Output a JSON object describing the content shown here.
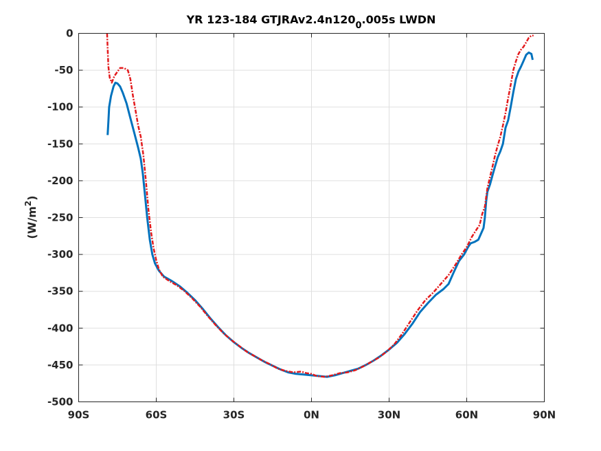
{
  "chart_data": {
    "type": "line",
    "title_prefix": "YR 123-184 GTJRAv2.4n120",
    "title_subscript": "0",
    "title_suffix": ".005s LWDN",
    "ylabel_prefix": "(W/m",
    "ylabel_superscript": "2",
    "ylabel_suffix": ")",
    "xlim": [
      -90,
      90
    ],
    "ylim": [
      -500,
      0
    ],
    "grid": true,
    "x_ticks": [
      {
        "value": -90,
        "label": "90S"
      },
      {
        "value": -60,
        "label": "60S"
      },
      {
        "value": -30,
        "label": "30S"
      },
      {
        "value": 0,
        "label": "0N"
      },
      {
        "value": 30,
        "label": "30N"
      },
      {
        "value": 60,
        "label": "60N"
      },
      {
        "value": 90,
        "label": "90N"
      }
    ],
    "y_ticks": [
      {
        "value": 0,
        "label": "0"
      },
      {
        "value": -50,
        "label": "-50"
      },
      {
        "value": -100,
        "label": "-100"
      },
      {
        "value": -150,
        "label": "-150"
      },
      {
        "value": -200,
        "label": "-200"
      },
      {
        "value": -250,
        "label": "-250"
      },
      {
        "value": -300,
        "label": "-300"
      },
      {
        "value": -350,
        "label": "-350"
      },
      {
        "value": -400,
        "label": "-400"
      },
      {
        "value": -450,
        "label": "-450"
      },
      {
        "value": -500,
        "label": "-500"
      }
    ],
    "series": [
      {
        "color": "#0072BD",
        "style": "solid",
        "points": [
          [
            -78.8,
            -138
          ],
          [
            -78.5,
            -120
          ],
          [
            -78.2,
            -100
          ],
          [
            -77.5,
            -85
          ],
          [
            -76.5,
            -72
          ],
          [
            -75.8,
            -67
          ],
          [
            -75.0,
            -68
          ],
          [
            -74.0,
            -72
          ],
          [
            -73.0,
            -80
          ],
          [
            -71.5,
            -95
          ],
          [
            -70.0,
            -115
          ],
          [
            -68.5,
            -135
          ],
          [
            -67.0,
            -155
          ],
          [
            -66.0,
            -170
          ],
          [
            -65.2,
            -190
          ],
          [
            -64.5,
            -215
          ],
          [
            -63.5,
            -250
          ],
          [
            -62.5,
            -280
          ],
          [
            -61.5,
            -300
          ],
          [
            -60.5,
            -312
          ],
          [
            -59.0,
            -322
          ],
          [
            -57.0,
            -330
          ],
          [
            -54.0,
            -336
          ],
          [
            -51.0,
            -343
          ],
          [
            -48.0,
            -352
          ],
          [
            -45.0,
            -362
          ],
          [
            -42.0,
            -374
          ],
          [
            -39.0,
            -387
          ],
          [
            -36.0,
            -399
          ],
          [
            -33.0,
            -410
          ],
          [
            -30.0,
            -419
          ],
          [
            -27.0,
            -427
          ],
          [
            -24.0,
            -434
          ],
          [
            -21.0,
            -440
          ],
          [
            -18.0,
            -446
          ],
          [
            -15.0,
            -451
          ],
          [
            -12.0,
            -456
          ],
          [
            -9.0,
            -460
          ],
          [
            -6.0,
            -462
          ],
          [
            -3.0,
            -463
          ],
          [
            0.0,
            -464
          ],
          [
            3.0,
            -465
          ],
          [
            6.0,
            -466
          ],
          [
            9.0,
            -464
          ],
          [
            12.0,
            -461
          ],
          [
            15.0,
            -458
          ],
          [
            18.0,
            -455
          ],
          [
            21.0,
            -450
          ],
          [
            24.0,
            -444
          ],
          [
            27.0,
            -437
          ],
          [
            30.0,
            -429
          ],
          [
            33.0,
            -420
          ],
          [
            36.0,
            -408
          ],
          [
            39.0,
            -394
          ],
          [
            42.0,
            -378
          ],
          [
            45.0,
            -366
          ],
          [
            48.0,
            -355
          ],
          [
            51.0,
            -347
          ],
          [
            53.0,
            -340
          ],
          [
            55.0,
            -324
          ],
          [
            57.0,
            -309
          ],
          [
            59.0,
            -300
          ],
          [
            60.5,
            -290
          ],
          [
            61.5,
            -285
          ],
          [
            63.0,
            -283
          ],
          [
            64.5,
            -280
          ],
          [
            65.5,
            -272
          ],
          [
            66.5,
            -264
          ],
          [
            67.0,
            -250
          ],
          [
            67.5,
            -228
          ],
          [
            68.0,
            -215
          ],
          [
            69.0,
            -205
          ],
          [
            70.0,
            -192
          ],
          [
            71.0,
            -180
          ],
          [
            72.0,
            -168
          ],
          [
            73.0,
            -160
          ],
          [
            74.0,
            -150
          ],
          [
            75.0,
            -128
          ],
          [
            76.0,
            -118
          ],
          [
            77.0,
            -100
          ],
          [
            78.0,
            -80
          ],
          [
            79.0,
            -62
          ],
          [
            80.0,
            -52
          ],
          [
            81.0,
            -45
          ],
          [
            82.0,
            -37
          ],
          [
            83.0,
            -29
          ],
          [
            84.0,
            -26
          ],
          [
            85.0,
            -28
          ],
          [
            85.5,
            -36
          ]
        ]
      },
      {
        "color": "#E31A1C",
        "style": "dashdot",
        "points": [
          [
            -79.0,
            0
          ],
          [
            -78.8,
            -20
          ],
          [
            -78.5,
            -45
          ],
          [
            -78.0,
            -60
          ],
          [
            -77.2,
            -67
          ],
          [
            -76.2,
            -58
          ],
          [
            -75.0,
            -52
          ],
          [
            -74.0,
            -47
          ],
          [
            -72.5,
            -47
          ],
          [
            -71.0,
            -50
          ],
          [
            -70.0,
            -62
          ],
          [
            -69.0,
            -85
          ],
          [
            -68.0,
            -105
          ],
          [
            -67.0,
            -125
          ],
          [
            -66.0,
            -140
          ],
          [
            -65.0,
            -165
          ],
          [
            -64.0,
            -200
          ],
          [
            -63.0,
            -240
          ],
          [
            -62.0,
            -270
          ],
          [
            -61.0,
            -292
          ],
          [
            -60.0,
            -308
          ],
          [
            -59.0,
            -320
          ],
          [
            -57.5,
            -330
          ],
          [
            -55.0,
            -336
          ],
          [
            -52.0,
            -342
          ],
          [
            -49.0,
            -350
          ],
          [
            -46.0,
            -360
          ],
          [
            -43.0,
            -371
          ],
          [
            -40.0,
            -384
          ],
          [
            -37.0,
            -396
          ],
          [
            -34.0,
            -407
          ],
          [
            -31.0,
            -416
          ],
          [
            -28.0,
            -424
          ],
          [
            -25.0,
            -432
          ],
          [
            -22.0,
            -438
          ],
          [
            -19.0,
            -444
          ],
          [
            -16.0,
            -449
          ],
          [
            -13.0,
            -455
          ],
          [
            -10.0,
            -458
          ],
          [
            -7.0,
            -460
          ],
          [
            -4.0,
            -459
          ],
          [
            -2.0,
            -461
          ],
          [
            0.0,
            -462
          ],
          [
            2.0,
            -465
          ],
          [
            5.0,
            -466
          ],
          [
            8.0,
            -464
          ],
          [
            11.0,
            -461
          ],
          [
            14.0,
            -460
          ],
          [
            17.0,
            -457
          ],
          [
            20.0,
            -452
          ],
          [
            23.0,
            -446
          ],
          [
            26.0,
            -440
          ],
          [
            29.0,
            -432
          ],
          [
            32.0,
            -422
          ],
          [
            35.0,
            -408
          ],
          [
            38.0,
            -392
          ],
          [
            41.0,
            -376
          ],
          [
            44.0,
            -362
          ],
          [
            47.0,
            -352
          ],
          [
            50.0,
            -340
          ],
          [
            53.0,
            -328
          ],
          [
            56.0,
            -312
          ],
          [
            58.0,
            -300
          ],
          [
            60.0,
            -290
          ],
          [
            62.0,
            -276
          ],
          [
            64.0,
            -265
          ],
          [
            65.0,
            -260
          ],
          [
            66.0,
            -245
          ],
          [
            67.0,
            -235
          ],
          [
            68.0,
            -210
          ],
          [
            69.0,
            -195
          ],
          [
            70.0,
            -180
          ],
          [
            71.0,
            -165
          ],
          [
            72.0,
            -152
          ],
          [
            73.0,
            -140
          ],
          [
            74.0,
            -125
          ],
          [
            75.0,
            -108
          ],
          [
            76.0,
            -88
          ],
          [
            77.0,
            -70
          ],
          [
            78.0,
            -50
          ],
          [
            79.0,
            -38
          ],
          [
            80.0,
            -28
          ],
          [
            81.0,
            -22
          ],
          [
            82.0,
            -18
          ],
          [
            83.0,
            -12
          ],
          [
            84.0,
            -6
          ],
          [
            85.0,
            -3
          ],
          [
            85.8,
            -3
          ]
        ]
      }
    ]
  }
}
